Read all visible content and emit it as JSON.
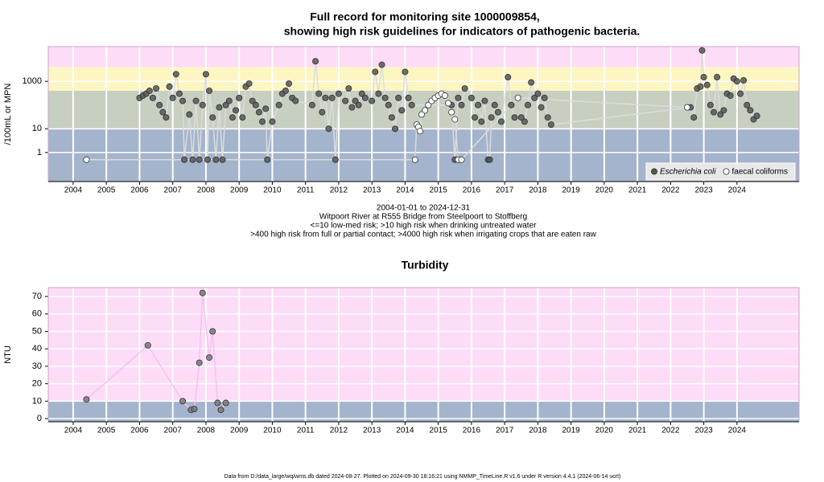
{
  "title": [
    "Full record for monitoring site 1000009854,",
    "showing high risk guidelines for indicators of pathogenic bacteria."
  ],
  "footer": "Data from D:/data_large/wq/wms.db dated 2024-08-27. Plotted on 2024-09-30 18:16:21 using NMMP_TimeLine.R v1.6 under R version 4.4.1 (2024-06-14 ucrt)",
  "chart_data": [
    {
      "type": "scatter",
      "ylabel": "/100mL or MPN",
      "log_scale": true,
      "grid": true,
      "legend": "bottomright",
      "notes": [
        "2004-01-01 to 2024-12-31",
        "Witpoort River at R555 Bridge from Steelpoort to Stoffberg",
        "<=10 low-med risk; >10 high risk when drinking untreated water",
        ">400 high risk from full or partial contact; >4000 high risk when irrigating crops that are eaten raw"
      ],
      "bands": [
        {
          "value": 10,
          "color": "#a4b4cc"
        },
        {
          "value": 400,
          "color": "#c6cfc0"
        },
        {
          "value": 4000,
          "color": "#fdf6c2"
        },
        {
          "value": 29000,
          "color": "#fddcf8"
        }
      ],
      "xlim": [
        2003.25,
        2025.87
      ],
      "xticks": [
        2004,
        2005,
        2006,
        2007,
        2008,
        2009,
        2010,
        2011,
        2012,
        2013,
        2014,
        2015,
        2016,
        2017,
        2018,
        2019,
        2020,
        2021,
        2022,
        2023,
        2024
      ],
      "ylim": [
        0.06,
        29000
      ],
      "yticks": [
        1,
        10,
        1000
      ],
      "series": [
        {
          "name": "Escherichia coli",
          "color": "#555555",
          "marker": "filled",
          "x": [
            2006.0,
            2006.1,
            2006.2,
            2006.3,
            2006.4,
            2006.5,
            2006.6,
            2006.7,
            2006.8,
            2006.9,
            2007.0,
            2007.1,
            2007.2,
            2007.3,
            2007.35,
            2007.5,
            2007.6,
            2007.7,
            2007.8,
            2007.9,
            2008.0,
            2008.05,
            2008.1,
            2008.2,
            2008.3,
            2008.4,
            2008.5,
            2008.6,
            2008.7,
            2008.8,
            2008.9,
            2009.0,
            2009.1,
            2009.2,
            2009.3,
            2009.4,
            2009.5,
            2009.6,
            2009.7,
            2009.8,
            2009.85,
            2010.0,
            2010.2,
            2010.3,
            2010.4,
            2010.5,
            2010.6,
            2010.7,
            2011.2,
            2011.3,
            2011.4,
            2011.5,
            2011.6,
            2011.7,
            2011.8,
            2011.9,
            2012.0,
            2012.2,
            2012.3,
            2012.4,
            2012.5,
            2012.6,
            2012.7,
            2012.8,
            2013.0,
            2013.1,
            2013.2,
            2013.3,
            2013.4,
            2013.5,
            2013.6,
            2013.7,
            2013.8,
            2013.9,
            2014.0,
            2014.1,
            2014.2,
            2015.4,
            2015.5,
            2015.6,
            2015.7,
            2015.8,
            2016.0,
            2016.1,
            2016.2,
            2016.3,
            2016.4,
            2016.5,
            2016.55,
            2016.6,
            2016.7,
            2016.8,
            2016.9,
            2017.1,
            2017.2,
            2017.3,
            2017.5,
            2017.6,
            2017.7,
            2017.8,
            2017.9,
            2018.0,
            2018.1,
            2018.2,
            2018.3,
            2018.4,
            2022.6,
            2022.7,
            2022.8,
            2022.9,
            2022.95,
            2023.0,
            2023.1,
            2023.2,
            2023.3,
            2023.4,
            2023.5,
            2023.6,
            2023.7,
            2023.8,
            2023.9,
            2024.0,
            2024.1,
            2024.2,
            2024.3,
            2024.4,
            2024.5,
            2024.6
          ],
          "values": [
            200,
            250,
            300,
            400,
            200,
            500,
            100,
            50,
            30,
            600,
            200,
            2000,
            300,
            150,
            0.5,
            40,
            0.5,
            150,
            0.5,
            100,
            2000,
            0.5,
            400,
            30,
            0.5,
            80,
            0.5,
            100,
            150,
            30,
            60,
            200,
            30,
            600,
            800,
            150,
            100,
            50,
            20,
            70,
            0.5,
            20,
            100,
            300,
            400,
            800,
            200,
            150,
            100,
            7000,
            300,
            50,
            200,
            10,
            200,
            0.5,
            300,
            150,
            500,
            80,
            150,
            100,
            300,
            200,
            150,
            2500,
            300,
            5000,
            200,
            100,
            30,
            10,
            200,
            60,
            2500,
            200,
            100,
            100,
            0.5,
            200,
            100,
            500,
            200,
            30,
            100,
            20,
            150,
            0.5,
            0.5,
            30,
            100,
            50,
            20,
            1500,
            100,
            30,
            30,
            20,
            100,
            900,
            200,
            300,
            80,
            200,
            30,
            15,
            80,
            30,
            500,
            600,
            20000,
            1500,
            700,
            100,
            50,
            1500,
            40,
            60,
            300,
            250,
            1300,
            1000,
            300,
            1100,
            100,
            60,
            25,
            35
          ]
        },
        {
          "name": "faecal coliforms",
          "color": "#ffffff",
          "marker": "open",
          "x": [
            2004.4,
            2014.3,
            2014.35,
            2014.4,
            2014.45,
            2014.5,
            2014.6,
            2014.7,
            2014.8,
            2014.9,
            2015.0,
            2015.1,
            2015.2,
            2015.3,
            2015.4,
            2015.5,
            2015.6,
            2015.7,
            2017.4,
            2022.5
          ],
          "values": [
            0.5,
            0.5,
            15,
            12,
            8,
            40,
            60,
            100,
            150,
            200,
            250,
            300,
            250,
            120,
            50,
            25,
            0.5,
            0.5,
            200,
            80
          ]
        }
      ]
    },
    {
      "type": "scatter",
      "title": "Turbidity",
      "ylabel": "NTU",
      "log_scale": false,
      "grid": true,
      "bands": [
        {
          "value": 10,
          "color": "#a4b4cc"
        },
        {
          "value": 75.1,
          "color": "#fddcf8"
        }
      ],
      "xlim": [
        2003.25,
        2025.87
      ],
      "xticks": [
        2004,
        2005,
        2006,
        2007,
        2008,
        2009,
        2010,
        2011,
        2012,
        2013,
        2014,
        2015,
        2016,
        2017,
        2018,
        2019,
        2020,
        2021,
        2022,
        2023,
        2024
      ],
      "ylim": [
        -1.8,
        75.1
      ],
      "yticks": [
        0,
        10,
        20,
        30,
        40,
        50,
        60,
        70
      ],
      "series": [
        {
          "color": "#777777",
          "marker": "filled",
          "x": [
            2004.4,
            2006.25,
            2007.3,
            2007.55,
            2007.65,
            2007.8,
            2007.9,
            2008.1,
            2008.2,
            2008.35,
            2008.45,
            2008.6
          ],
          "values": [
            11,
            42,
            10,
            5,
            5.5,
            32,
            72,
            35,
            50,
            9,
            5,
            9
          ]
        }
      ]
    }
  ]
}
